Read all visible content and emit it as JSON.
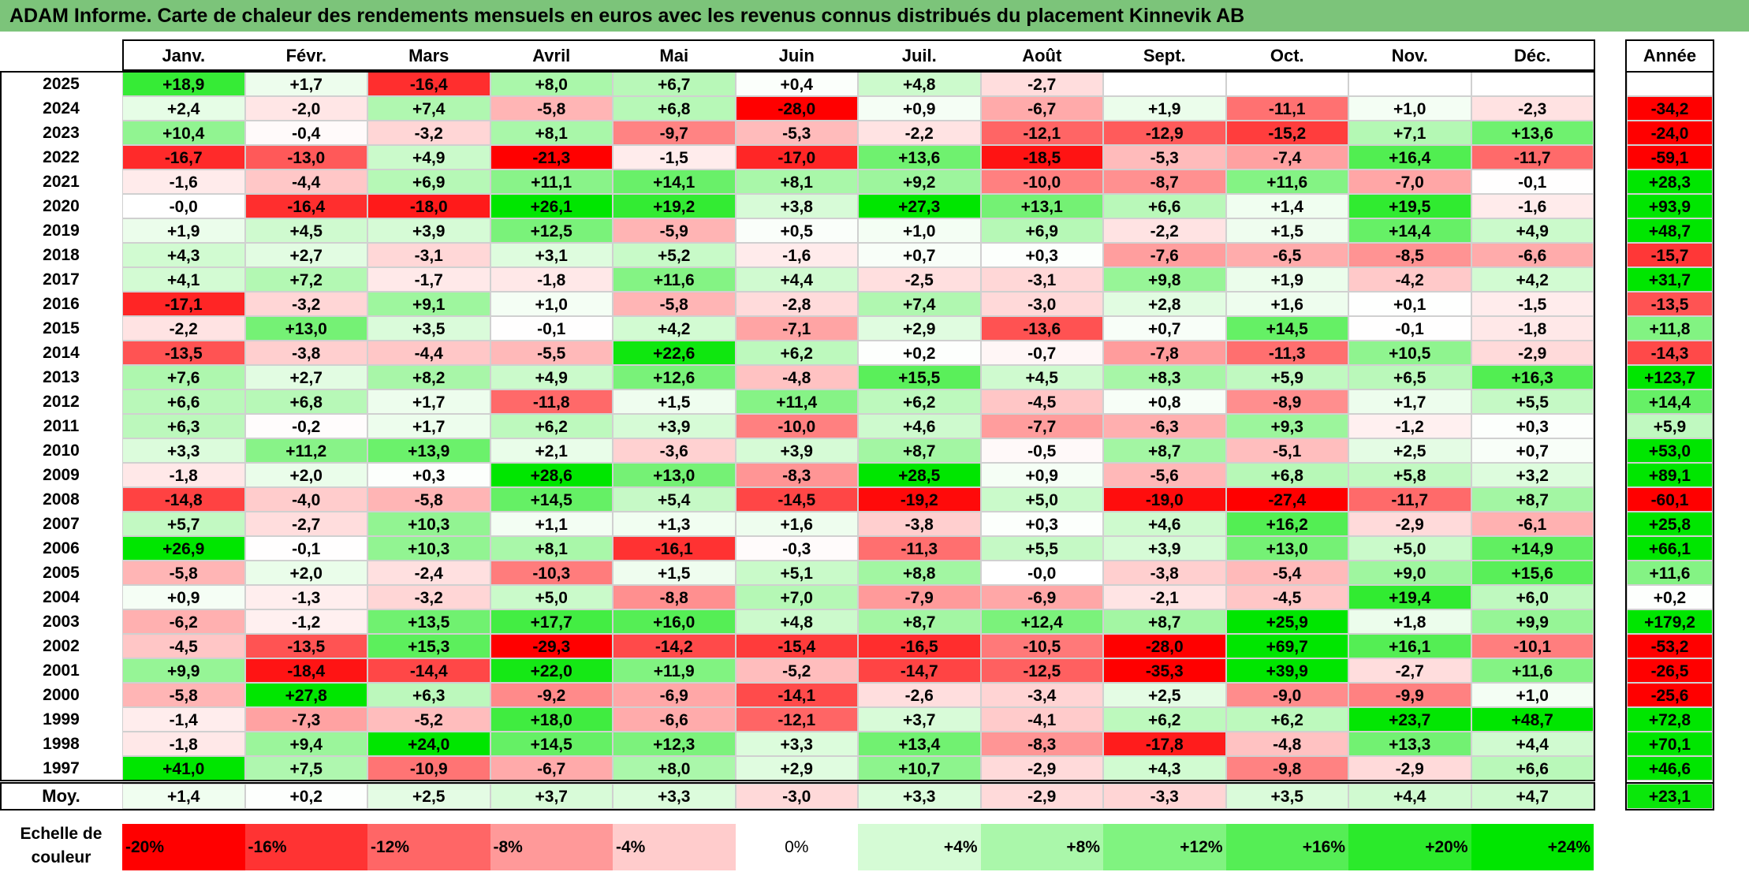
{
  "title": "ADAM Informe. Carte de chaleur des rendements mensuels en euros avec les revenus connus distribués du placement Kinnevik AB",
  "months": [
    "Janv.",
    "Févr.",
    "Mars",
    "Avril",
    "Mai",
    "Juin",
    "Juil.",
    "Août",
    "Sept.",
    "Oct.",
    "Nov.",
    "Déc."
  ],
  "year_header": "Année",
  "avg_label": "Moy.",
  "scale_label": "Echelle de couleur",
  "scale_steps": [
    "-20%",
    "-16%",
    "-12%",
    "-8%",
    "-4%",
    "0%",
    "+4%",
    "+8%",
    "+12%",
    "+16%",
    "+20%",
    "+24%"
  ],
  "colors": {
    "title_bg": "#7cc47a",
    "neg_max": "#ff0000",
    "zero": "#ffffff",
    "pos_max": "#00e600"
  },
  "chart_data": {
    "type": "heatmap",
    "columns": [
      "Janv.",
      "Févr.",
      "Mars",
      "Avril",
      "Mai",
      "Juin",
      "Juil.",
      "Août",
      "Sept.",
      "Oct.",
      "Nov.",
      "Déc."
    ],
    "rows": [
      {
        "year": "2025",
        "values": [
          "+18,9",
          "+1,7",
          "-16,4",
          "+8,0",
          "+6,7",
          "+0,4",
          "+4,8",
          "-2,7",
          "",
          "",
          "",
          ""
        ],
        "annual": ""
      },
      {
        "year": "2024",
        "values": [
          "+2,4",
          "-2,0",
          "+7,4",
          "-5,8",
          "+6,8",
          "-28,0",
          "+0,9",
          "-6,7",
          "+1,9",
          "-11,1",
          "+1,0",
          "-2,3"
        ],
        "annual": "-34,2"
      },
      {
        "year": "2023",
        "values": [
          "+10,4",
          "-0,4",
          "-3,2",
          "+8,1",
          "-9,7",
          "-5,3",
          "-2,2",
          "-12,1",
          "-12,9",
          "-15,2",
          "+7,1",
          "+13,6"
        ],
        "annual": "-24,0"
      },
      {
        "year": "2022",
        "values": [
          "-16,7",
          "-13,0",
          "+4,9",
          "-21,3",
          "-1,5",
          "-17,0",
          "+13,6",
          "-18,5",
          "-5,3",
          "-7,4",
          "+16,4",
          "-11,7"
        ],
        "annual": "-59,1"
      },
      {
        "year": "2021",
        "values": [
          "-1,6",
          "-4,4",
          "+6,9",
          "+11,1",
          "+14,1",
          "+8,1",
          "+9,2",
          "-10,0",
          "-8,7",
          "+11,6",
          "-7,0",
          "-0,1"
        ],
        "annual": "+28,3"
      },
      {
        "year": "2020",
        "values": [
          "-0,0",
          "-16,4",
          "-18,0",
          "+26,1",
          "+19,2",
          "+3,8",
          "+27,3",
          "+13,1",
          "+6,6",
          "+1,4",
          "+19,5",
          "-1,6"
        ],
        "annual": "+93,9"
      },
      {
        "year": "2019",
        "values": [
          "+1,9",
          "+4,5",
          "+3,9",
          "+12,5",
          "-5,9",
          "+0,5",
          "+1,0",
          "+6,9",
          "-2,2",
          "+1,5",
          "+14,4",
          "+4,9"
        ],
        "annual": "+48,7"
      },
      {
        "year": "2018",
        "values": [
          "+4,3",
          "+2,7",
          "-3,1",
          "+3,1",
          "+5,2",
          "-1,6",
          "+0,7",
          "+0,3",
          "-7,6",
          "-6,5",
          "-8,5",
          "-6,6"
        ],
        "annual": "-15,7"
      },
      {
        "year": "2017",
        "values": [
          "+4,1",
          "+7,2",
          "-1,7",
          "-1,8",
          "+11,6",
          "+4,4",
          "-2,5",
          "-3,1",
          "+9,8",
          "+1,9",
          "-4,2",
          "+4,2"
        ],
        "annual": "+31,7"
      },
      {
        "year": "2016",
        "values": [
          "-17,1",
          "-3,2",
          "+9,1",
          "+1,0",
          "-5,8",
          "-2,8",
          "+7,4",
          "-3,0",
          "+2,8",
          "+1,6",
          "+0,1",
          "-1,5"
        ],
        "annual": "-13,5"
      },
      {
        "year": "2015",
        "values": [
          "-2,2",
          "+13,0",
          "+3,5",
          "-0,1",
          "+4,2",
          "-7,1",
          "+2,9",
          "-13,6",
          "+0,7",
          "+14,5",
          "-0,1",
          "-1,8"
        ],
        "annual": "+11,8"
      },
      {
        "year": "2014",
        "values": [
          "-13,5",
          "-3,8",
          "-4,4",
          "-5,5",
          "+22,6",
          "+6,2",
          "+0,2",
          "-0,7",
          "-7,8",
          "-11,3",
          "+10,5",
          "-2,9"
        ],
        "annual": "-14,3"
      },
      {
        "year": "2013",
        "values": [
          "+7,6",
          "+2,7",
          "+8,2",
          "+4,9",
          "+12,6",
          "-4,8",
          "+15,5",
          "+4,5",
          "+8,3",
          "+5,9",
          "+6,5",
          "+16,3"
        ],
        "annual": "+123,7"
      },
      {
        "year": "2012",
        "values": [
          "+6,6",
          "+6,8",
          "+1,7",
          "-11,8",
          "+1,5",
          "+11,4",
          "+6,2",
          "-4,5",
          "+0,8",
          "-8,9",
          "+1,7",
          "+5,5"
        ],
        "annual": "+14,4"
      },
      {
        "year": "2011",
        "values": [
          "+6,3",
          "-0,2",
          "+1,7",
          "+6,2",
          "+3,9",
          "-10,0",
          "+4,6",
          "-7,7",
          "-6,3",
          "+9,3",
          "-1,2",
          "+0,3"
        ],
        "annual": "+5,9"
      },
      {
        "year": "2010",
        "values": [
          "+3,3",
          "+11,2",
          "+13,9",
          "+2,1",
          "-3,6",
          "+3,9",
          "+8,7",
          "-0,5",
          "+8,7",
          "-5,1",
          "+2,5",
          "+0,7"
        ],
        "annual": "+53,0"
      },
      {
        "year": "2009",
        "values": [
          "-1,8",
          "+2,0",
          "+0,3",
          "+28,6",
          "+13,0",
          "-8,3",
          "+28,5",
          "+0,9",
          "-5,6",
          "+6,8",
          "+5,8",
          "+3,2"
        ],
        "annual": "+89,1"
      },
      {
        "year": "2008",
        "values": [
          "-14,8",
          "-4,0",
          "-5,8",
          "+14,5",
          "+5,4",
          "-14,5",
          "-19,2",
          "+5,0",
          "-19,0",
          "-27,4",
          "-11,7",
          "+8,7"
        ],
        "annual": "-60,1"
      },
      {
        "year": "2007",
        "values": [
          "+5,7",
          "-2,7",
          "+10,3",
          "+1,1",
          "+1,3",
          "+1,6",
          "-3,8",
          "+0,3",
          "+4,6",
          "+16,2",
          "-2,9",
          "-6,1"
        ],
        "annual": "+25,8"
      },
      {
        "year": "2006",
        "values": [
          "+26,9",
          "-0,1",
          "+10,3",
          "+8,1",
          "-16,1",
          "-0,3",
          "-11,3",
          "+5,5",
          "+3,9",
          "+13,0",
          "+5,0",
          "+14,9"
        ],
        "annual": "+66,1"
      },
      {
        "year": "2005",
        "values": [
          "-5,8",
          "+2,0",
          "-2,4",
          "-10,3",
          "+1,5",
          "+5,1",
          "+8,8",
          "-0,0",
          "-3,8",
          "-5,4",
          "+9,0",
          "+15,6"
        ],
        "annual": "+11,6"
      },
      {
        "year": "2004",
        "values": [
          "+0,9",
          "-1,3",
          "-3,2",
          "+5,0",
          "-8,8",
          "+7,0",
          "-7,9",
          "-6,9",
          "-2,1",
          "-4,5",
          "+19,4",
          "+6,0"
        ],
        "annual": "+0,2"
      },
      {
        "year": "2003",
        "values": [
          "-6,2",
          "-1,2",
          "+13,5",
          "+17,7",
          "+16,0",
          "+4,8",
          "+8,7",
          "+12,4",
          "+8,7",
          "+25,9",
          "+1,8",
          "+9,9"
        ],
        "annual": "+179,2"
      },
      {
        "year": "2002",
        "values": [
          "-4,5",
          "-13,5",
          "+15,3",
          "-29,3",
          "-14,2",
          "-15,4",
          "-16,5",
          "-10,5",
          "-28,0",
          "+69,7",
          "+16,1",
          "-10,1"
        ],
        "annual": "-53,2"
      },
      {
        "year": "2001",
        "values": [
          "+9,9",
          "-18,4",
          "-14,4",
          "+22,0",
          "+11,9",
          "-5,2",
          "-14,7",
          "-12,5",
          "-35,3",
          "+39,9",
          "-2,7",
          "+11,6"
        ],
        "annual": "-26,5"
      },
      {
        "year": "2000",
        "values": [
          "-5,8",
          "+27,8",
          "+6,3",
          "-9,2",
          "-6,9",
          "-14,1",
          "-2,6",
          "-3,4",
          "+2,5",
          "-9,0",
          "-9,9",
          "+1,0"
        ],
        "annual": "-25,6"
      },
      {
        "year": "1999",
        "values": [
          "-1,4",
          "-7,3",
          "-5,2",
          "+18,0",
          "-6,6",
          "-12,1",
          "+3,7",
          "-4,1",
          "+6,2",
          "+6,2",
          "+23,7",
          "+48,7"
        ],
        "annual": "+72,8"
      },
      {
        "year": "1998",
        "values": [
          "-1,8",
          "+9,4",
          "+24,0",
          "+14,5",
          "+12,3",
          "+3,3",
          "+13,4",
          "-8,3",
          "-17,8",
          "-4,8",
          "+13,3",
          "+4,4"
        ],
        "annual": "+70,1"
      },
      {
        "year": "1997",
        "values": [
          "+41,0",
          "+7,5",
          "-10,9",
          "-6,7",
          "+8,0",
          "+2,9",
          "+10,7",
          "-2,9",
          "+4,3",
          "-9,8",
          "-2,9",
          "+6,6"
        ],
        "annual": "+46,6"
      }
    ],
    "average": {
      "values": [
        "+1,4",
        "+0,2",
        "+2,5",
        "+3,7",
        "+3,3",
        "-3,0",
        "+3,3",
        "-2,9",
        "-3,3",
        "+3,5",
        "+4,4",
        "+4,7"
      ],
      "annual": "+23,1"
    }
  }
}
